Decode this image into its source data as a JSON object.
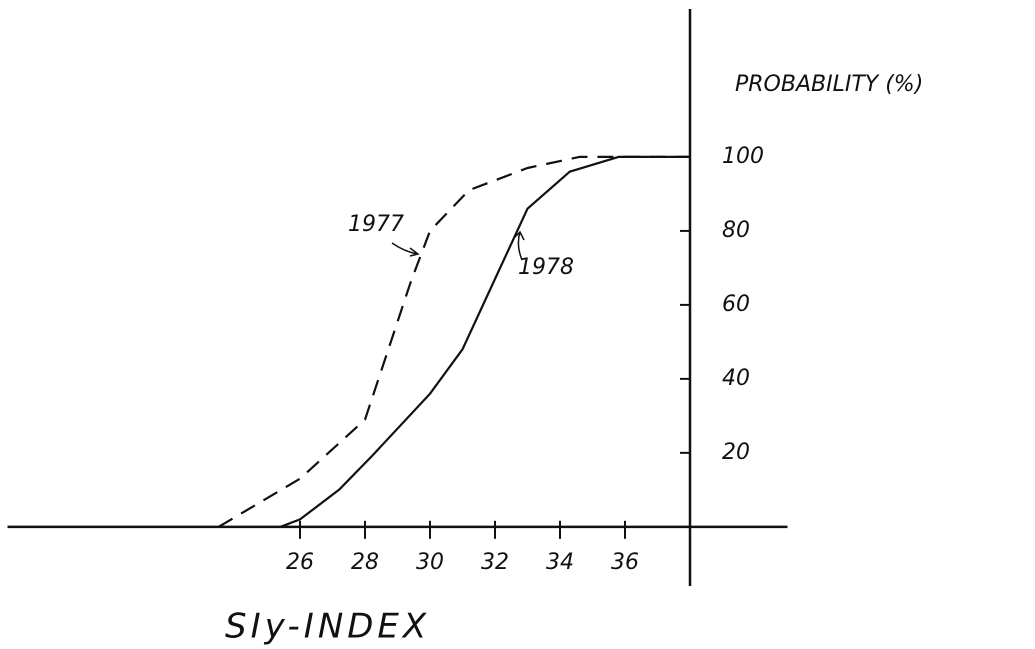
{
  "chart_data": {
    "type": "line",
    "x_label": "SIy-INDEX",
    "y_label": "PROBABILITY (%)",
    "series": [
      {
        "name": "1977",
        "color": "#111111",
        "dashed": true,
        "x": [
          23.5,
          26,
          28,
          29.4,
          30,
          31.2,
          33,
          34.6,
          38
        ],
        "values": [
          0,
          13,
          29,
          66,
          80,
          91,
          97,
          100,
          100
        ]
      },
      {
        "name": "1978",
        "color": "#111111",
        "dashed": false,
        "x": [
          25.4,
          26,
          27.2,
          28.2,
          30,
          31,
          32,
          33,
          34.3,
          35.8,
          38
        ],
        "values": [
          0,
          2,
          10,
          19,
          36,
          48,
          67,
          86,
          96,
          100,
          100
        ]
      }
    ],
    "xlim": [
      17,
      41
    ],
    "ylim": [
      -16,
      140
    ],
    "xticks": [
      26,
      28,
      30,
      32,
      34,
      36
    ],
    "yticks": [
      20,
      40,
      60,
      80,
      100
    ],
    "y_axis_at": 38,
    "grid": false
  }
}
